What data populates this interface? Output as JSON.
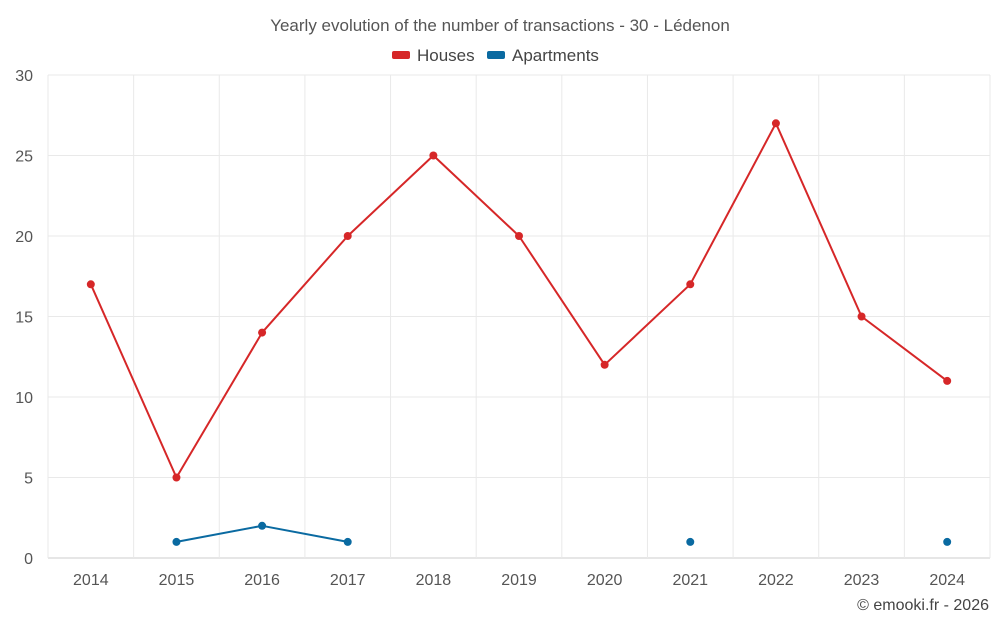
{
  "chart_data": {
    "type": "line",
    "title": "Yearly evolution of the number of transactions - 30 - Lédenon",
    "categories": [
      "2014",
      "2015",
      "2016",
      "2017",
      "2018",
      "2019",
      "2020",
      "2021",
      "2022",
      "2023",
      "2024"
    ],
    "series": [
      {
        "name": "Houses",
        "color": "#d62728",
        "values": [
          17,
          5,
          14,
          20,
          25,
          20,
          12,
          17,
          27,
          15,
          11
        ]
      },
      {
        "name": "Apartments",
        "color": "#0a6aa1",
        "values": [
          null,
          1,
          2,
          1,
          null,
          null,
          null,
          1,
          null,
          null,
          1
        ]
      }
    ],
    "xlabel": "",
    "ylabel": "",
    "ylim": [
      0,
      30
    ],
    "yticks": [
      0,
      5,
      10,
      15,
      20,
      25,
      30
    ],
    "grid": true,
    "legend": "top-center"
  },
  "credit": "© emooki.fr - 2026"
}
